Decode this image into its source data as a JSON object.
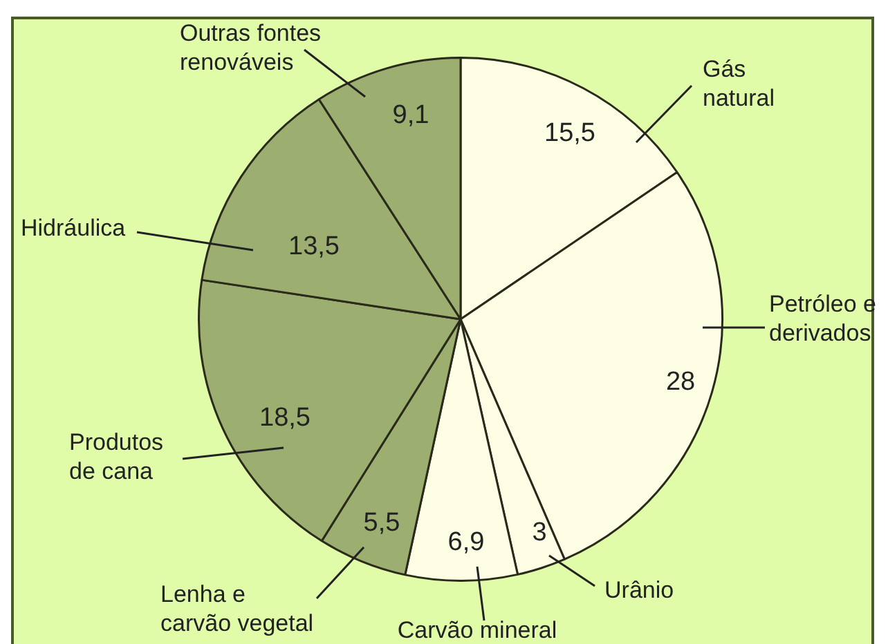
{
  "chart_data": {
    "type": "pie",
    "categories": [
      "Gás natural",
      "Petróleo e derivados",
      "Urânio",
      "Carvão mineral",
      "Lenha e carvão vegetal",
      "Produtos de cana",
      "Hidráulica",
      "Outras fontes renováveis"
    ],
    "values": [
      15.5,
      28,
      3,
      6.9,
      5.5,
      18.5,
      13.5,
      9.1
    ],
    "colors": [
      "#fefee4",
      "#fefee4",
      "#fefee4",
      "#fefee4",
      "#9cae70",
      "#9cae70",
      "#9cae70",
      "#9cae70"
    ],
    "value_labels": [
      "15,5",
      "28",
      "3",
      "6,9",
      "5,5",
      "18,5",
      "13,5",
      "9,1"
    ]
  }
}
